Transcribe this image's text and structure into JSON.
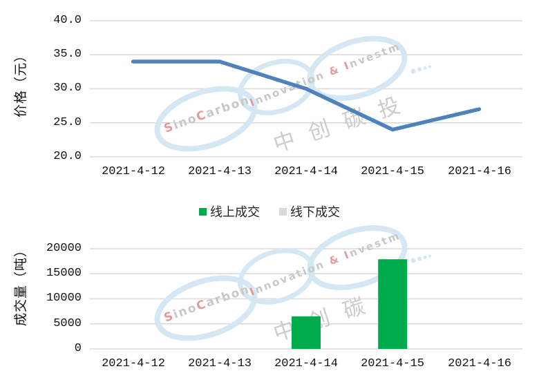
{
  "watermark": {
    "brand": "SinoCarbon",
    "tagline": "Innovation & Investment",
    "cn_name": "中创碳投",
    "blue": "#d6e7f4",
    "red": "#e09a9a",
    "gray": "#c7c7c7",
    "cn_gray": "#cccccc"
  },
  "chart_data": [
    {
      "type": "line",
      "name": "价格",
      "ylabel": "价格（元）",
      "x": [
        "2021-4-12",
        "2021-4-13",
        "2021-4-14",
        "2021-4-15",
        "2021-4-16"
      ],
      "values": [
        34.0,
        34.0,
        30.0,
        24.0,
        27.0
      ],
      "ylim": [
        20.0,
        40.0
      ],
      "ytick_step": 5.0,
      "ytick_labels": [
        "40.0",
        "35.0",
        "30.0",
        "25.0",
        "20.0"
      ],
      "grid": true,
      "line_color": "#4F81BD",
      "gridline_color": "#D9D9D9"
    },
    {
      "type": "bar",
      "ylabel": "成交量（吨）",
      "categories": [
        "2021-4-12",
        "2021-4-13",
        "2021-4-14",
        "2021-4-15",
        "2021-4-16"
      ],
      "series": [
        {
          "name": "线上成交",
          "color": "#00AB4E",
          "values": [
            0,
            0,
            6500,
            17900,
            0
          ]
        },
        {
          "name": "线下成交",
          "color": "#D9D9D9",
          "values": [
            0,
            0,
            0,
            0,
            0
          ]
        }
      ],
      "ylim": [
        0,
        20000
      ],
      "ytick_step": 5000,
      "ytick_labels": [
        "20000",
        "15000",
        "10000",
        "5000",
        "0"
      ],
      "grid": true,
      "legend_position": "between-charts",
      "gridline_color": "#D9D9D9"
    }
  ]
}
